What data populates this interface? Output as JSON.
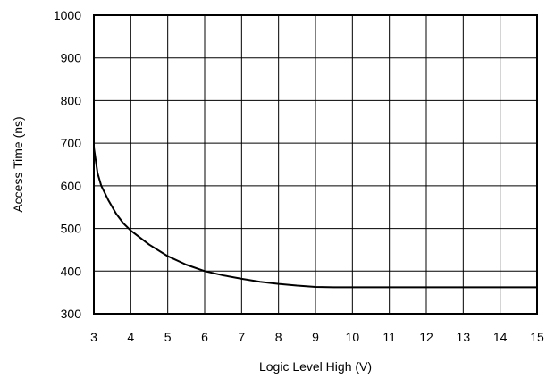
{
  "chart_data": {
    "type": "line",
    "title": "",
    "xlabel": "Logic Level High (V)",
    "ylabel": "Access Time (ns)",
    "xlim": [
      3,
      15
    ],
    "ylim": [
      300,
      1000
    ],
    "xticks": [
      "3",
      "4",
      "5",
      "6",
      "7",
      "8",
      "9",
      "10",
      "11",
      "12",
      "13",
      "14",
      "15"
    ],
    "yticks": [
      "300",
      "400",
      "500",
      "600",
      "700",
      "800",
      "900",
      "1000"
    ],
    "grid": true,
    "legend": "none",
    "colors": {
      "line": "#000000",
      "grid": "#000000",
      "background": "#ffffff"
    },
    "series": [
      {
        "x": [
          3.0,
          3.1,
          3.2,
          3.4,
          3.6,
          3.8,
          4.0,
          4.5,
          5.0,
          5.5,
          6.0,
          6.5,
          7.0,
          7.5,
          8.0,
          8.5,
          9.0,
          9.5,
          10.0,
          11.0,
          12.0,
          13.0,
          14.0,
          15.0
        ],
        "y": [
          690,
          630,
          600,
          565,
          535,
          512,
          495,
          462,
          435,
          415,
          400,
          390,
          382,
          375,
          370,
          366,
          363,
          362,
          362,
          362,
          362,
          362,
          362,
          362
        ]
      }
    ]
  }
}
